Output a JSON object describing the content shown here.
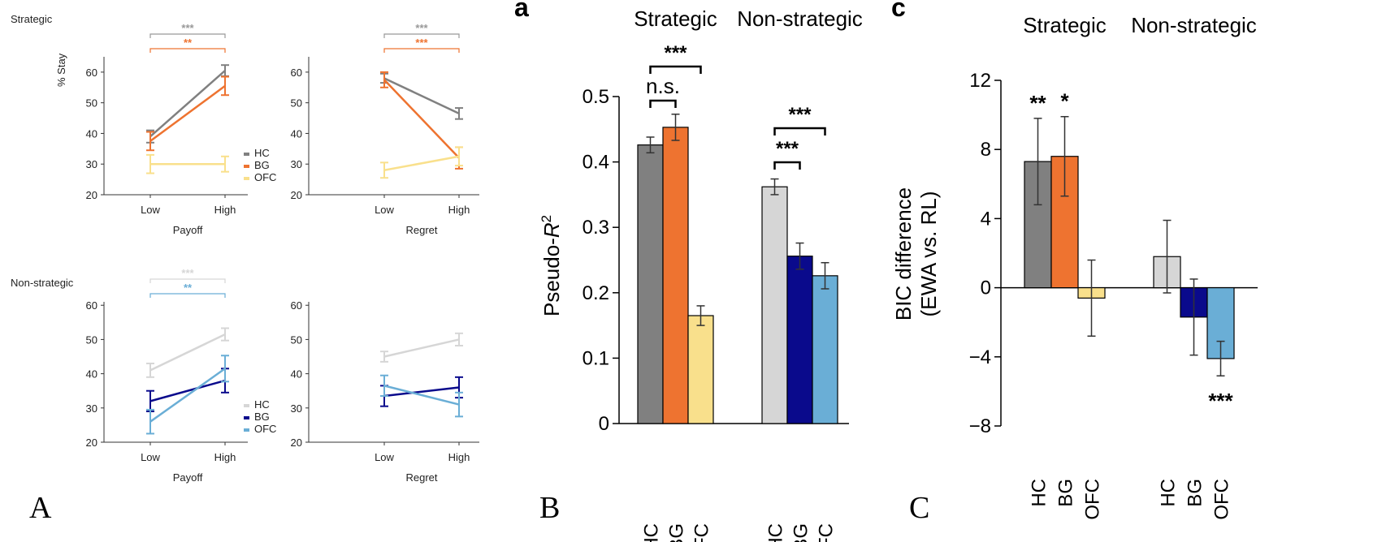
{
  "colors": {
    "HC_strat": "#808080",
    "BG_strat": "#ee7330",
    "OFC_strat": "#f9e08c",
    "HC_nonstrat": "#d6d6d6",
    "BG_nonstrat": "#0a0a8c",
    "OFC_nonstrat": "#6aaed6"
  },
  "panel_letters": [
    "A",
    "B",
    "C",
    "a",
    "c"
  ],
  "panelA": {
    "strategic_label": "Strategic",
    "nonstrategic_label": "Non-strategic",
    "ylabel": "% Stay"
  },
  "chart_data": [
    {
      "id": "A_strat_payoff",
      "type": "line",
      "xlabel": "Payoff",
      "categories": [
        "Low",
        "High"
      ],
      "ylim": [
        20,
        65
      ],
      "yticks": [
        20,
        30,
        40,
        50,
        60
      ],
      "legend": [
        "HC",
        "BG",
        "OFC"
      ],
      "legend_placement": "right",
      "series": [
        {
          "name": "HC",
          "color": "#808080",
          "values": [
            39,
            60.5
          ],
          "err": [
            2,
            1.8
          ]
        },
        {
          "name": "BG",
          "color": "#ee7330",
          "values": [
            37.5,
            55.5
          ],
          "err": [
            3,
            3
          ]
        },
        {
          "name": "OFC",
          "color": "#f9e08c",
          "values": [
            30,
            30
          ],
          "err": [
            3,
            2.5
          ]
        }
      ],
      "significance": [
        {
          "text": "***",
          "color": "#999999"
        },
        {
          "text": "**",
          "color": "#ee7330"
        }
      ]
    },
    {
      "id": "A_strat_regret",
      "type": "line",
      "xlabel": "Regret",
      "categories": [
        "Low",
        "High"
      ],
      "ylim": [
        20,
        65
      ],
      "yticks": [
        20,
        30,
        40,
        50,
        60
      ],
      "series": [
        {
          "name": "HC",
          "color": "#808080",
          "values": [
            58,
            46.5
          ],
          "err": [
            1.5,
            1.8
          ]
        },
        {
          "name": "BG",
          "color": "#ee7330",
          "values": [
            57.5,
            32
          ],
          "err": [
            2.5,
            3.5
          ]
        },
        {
          "name": "OFC",
          "color": "#f9e08c",
          "values": [
            28,
            32.5
          ],
          "err": [
            2.5,
            3
          ]
        }
      ],
      "significance": [
        {
          "text": "***",
          "color": "#999999"
        },
        {
          "text": "***",
          "color": "#ee7330"
        }
      ]
    },
    {
      "id": "A_nonstrat_payoff",
      "type": "line",
      "xlabel": "Payoff",
      "categories": [
        "Low",
        "High"
      ],
      "ylim": [
        20,
        61
      ],
      "yticks": [
        20,
        30,
        40,
        50,
        60
      ],
      "legend": [
        "HC",
        "BG",
        "OFC"
      ],
      "legend_placement": "bottom-right",
      "series": [
        {
          "name": "HC",
          "color": "#d6d6d6",
          "values": [
            41,
            51.5
          ],
          "err": [
            2,
            1.8
          ]
        },
        {
          "name": "BG",
          "color": "#0a0a8c",
          "values": [
            32,
            38
          ],
          "err": [
            3,
            3.5
          ]
        },
        {
          "name": "OFC",
          "color": "#6aaed6",
          "values": [
            26,
            41.5
          ],
          "err": [
            3.5,
            3.8
          ]
        }
      ],
      "significance": [
        {
          "text": "***",
          "color": "#d6d6d6"
        },
        {
          "text": "**",
          "color": "#6aaed6"
        }
      ]
    },
    {
      "id": "A_nonstrat_regret",
      "type": "line",
      "xlabel": "Regret",
      "categories": [
        "Low",
        "High"
      ],
      "ylim": [
        20,
        61
      ],
      "yticks": [
        20,
        30,
        40,
        50,
        60
      ],
      "series": [
        {
          "name": "HC",
          "color": "#d6d6d6",
          "values": [
            45,
            50
          ],
          "err": [
            1.5,
            1.8
          ]
        },
        {
          "name": "BG",
          "color": "#0a0a8c",
          "values": [
            33.5,
            36
          ],
          "err": [
            3,
            3
          ]
        },
        {
          "name": "OFC",
          "color": "#6aaed6",
          "values": [
            36.5,
            31
          ],
          "err": [
            3,
            3.5
          ]
        }
      ]
    },
    {
      "id": "B",
      "type": "bar",
      "ylabel": "Pseudo-R²",
      "ylim": [
        0,
        0.5
      ],
      "yticks": [
        "0",
        "0.1",
        "0.2",
        "0.3",
        "0.4",
        "0.5"
      ],
      "groups": [
        {
          "name": "Strategic",
          "categories": [
            "HC",
            "BG",
            "OFC"
          ],
          "values": [
            0.426,
            0.453,
            0.165
          ],
          "err": [
            0.012,
            0.02,
            0.015
          ],
          "colors": [
            "#808080",
            "#ee7330",
            "#f9e08c"
          ],
          "brackets": [
            {
              "from": 0,
              "to": 1,
              "text": "n.s."
            },
            {
              "from": 0,
              "to": 2,
              "text": "***"
            }
          ]
        },
        {
          "name": "Non-strategic",
          "categories": [
            "HC",
            "BG",
            "OFC"
          ],
          "values": [
            0.362,
            0.256,
            0.226
          ],
          "err": [
            0.012,
            0.02,
            0.02
          ],
          "colors": [
            "#d6d6d6",
            "#0a0a8c",
            "#6aaed6"
          ],
          "brackets": [
            {
              "from": 0,
              "to": 1,
              "text": "***"
            },
            {
              "from": 0,
              "to": 2,
              "text": "***"
            }
          ]
        }
      ]
    },
    {
      "id": "C",
      "type": "bar",
      "ylabel_lines": [
        "BIC difference",
        "(EWA vs. RL)"
      ],
      "ylim": [
        -8,
        12
      ],
      "yticks": [
        "−8",
        "−4",
        "0",
        "4",
        "8",
        "12"
      ],
      "groups": [
        {
          "name": "Strategic",
          "categories": [
            "HC",
            "BG",
            "OFC"
          ],
          "values": [
            7.3,
            7.6,
            -0.6
          ],
          "err": [
            2.5,
            2.3,
            2.2
          ],
          "colors": [
            "#808080",
            "#ee7330",
            "#f9e08c"
          ],
          "sig": [
            "**",
            "*",
            ""
          ]
        },
        {
          "name": "Non-strategic",
          "categories": [
            "HC",
            "BG",
            "OFC"
          ],
          "values": [
            1.8,
            -1.7,
            -4.1
          ],
          "err": [
            2.1,
            2.2,
            1.0
          ],
          "colors": [
            "#d6d6d6",
            "#0a0a8c",
            "#6aaed6"
          ],
          "sig": [
            "",
            "",
            "***"
          ]
        }
      ]
    }
  ]
}
